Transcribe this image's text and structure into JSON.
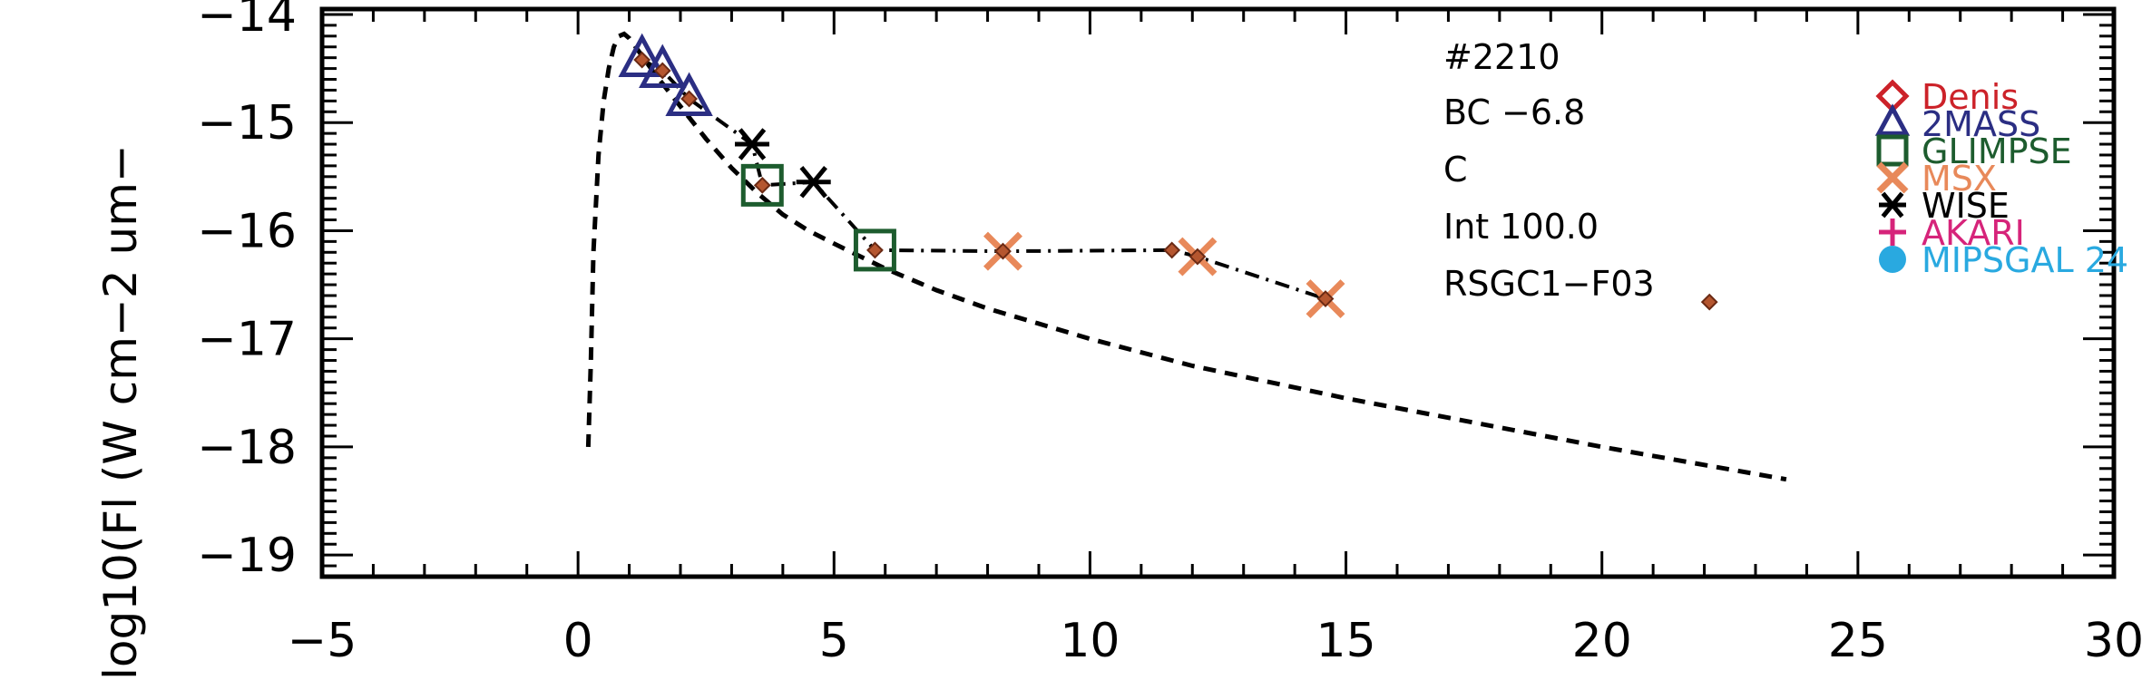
{
  "chart_data": {
    "type": "scatter",
    "ylabel": "log10(Fl (W cm−2 um−",
    "xlim": [
      -5,
      30
    ],
    "ylim": [
      -19.2,
      -13.95
    ],
    "x_ticks": [
      -5,
      0,
      5,
      10,
      15,
      20,
      25,
      30
    ],
    "x_tick_labels": [
      "−5",
      "0",
      "5",
      "10",
      "15",
      "20",
      "25",
      "30"
    ],
    "y_ticks": [
      -14,
      -15,
      -16,
      -17,
      -18,
      -19
    ],
    "y_tick_labels": [
      "−14",
      "−15",
      "−16",
      "−17",
      "−18",
      "−19"
    ],
    "annotations": [
      "#2210",
      "BC  −6.8",
      "C",
      "Int  100.0",
      "RSGC1−F03"
    ],
    "model_curve": {
      "style": "dashed",
      "x": [
        0.2,
        0.25,
        0.3,
        0.4,
        0.5,
        0.6,
        0.7,
        0.8,
        0.9,
        1.0,
        1.2,
        1.5,
        2.0,
        2.5,
        3.0,
        3.5,
        4.0,
        4.5,
        5.0,
        6.0,
        7.0,
        8.0,
        10.0,
        12.0,
        15.0,
        20.0,
        23.6
      ],
      "y": [
        -18.0,
        -17.2,
        -16.2,
        -15.3,
        -14.8,
        -14.5,
        -14.3,
        -14.2,
        -14.18,
        -14.22,
        -14.35,
        -14.55,
        -14.85,
        -15.15,
        -15.42,
        -15.65,
        -15.85,
        -16.0,
        -16.12,
        -16.35,
        -16.55,
        -16.72,
        -17.0,
        -17.25,
        -17.55,
        -18.0,
        -18.3
      ]
    },
    "observed_sed": {
      "style": "dash-dot",
      "x": [
        1.25,
        1.65,
        2.17,
        3.4,
        3.6,
        4.6,
        5.8,
        8.3,
        11.6,
        12.1,
        14.6
      ],
      "y": [
        -14.42,
        -14.52,
        -14.78,
        -15.2,
        -15.58,
        -15.55,
        -16.18,
        -16.19,
        -16.18,
        -16.24,
        -16.63
      ]
    },
    "model_points": {
      "x": [
        1.25,
        1.65,
        2.17,
        3.6,
        5.8,
        8.3,
        11.6,
        12.1,
        14.6,
        22.1
      ],
      "y": [
        -14.42,
        -14.52,
        -14.78,
        -15.58,
        -16.18,
        -16.19,
        -16.18,
        -16.24,
        -16.63,
        -16.66
      ]
    },
    "series": [
      {
        "name": "Denis",
        "color": "#cc2229",
        "marker": "diamond",
        "x": [],
        "y": []
      },
      {
        "name": "2MASS",
        "color": "#2b2e83",
        "marker": "triangle",
        "x": [
          1.25,
          1.65,
          2.17
        ],
        "y": [
          -14.42,
          -14.52,
          -14.78
        ]
      },
      {
        "name": "GLIMPSE",
        "color": "#1d5c2e",
        "marker": "square",
        "x": [
          3.6,
          5.8
        ],
        "y": [
          -15.58,
          -16.18
        ]
      },
      {
        "name": "MSX",
        "color": "#e8895a",
        "marker": "x",
        "x": [
          8.3,
          12.1,
          14.6
        ],
        "y": [
          -16.19,
          -16.24,
          -16.63
        ]
      },
      {
        "name": "WISE",
        "color": "#000000",
        "marker": "asterisk",
        "x": [
          3.4,
          4.6
        ],
        "y": [
          -15.2,
          -15.55
        ]
      },
      {
        "name": "AKARI",
        "color": "#d6247a",
        "marker": "plus",
        "x": [],
        "y": []
      },
      {
        "name": "MIPSGAL 24",
        "color": "#29a9e0",
        "marker": "circle",
        "x": [],
        "y": []
      }
    ]
  },
  "colors": {
    "model_point_fill": "#b5562f",
    "model_point_edge": "#6b2a14"
  }
}
